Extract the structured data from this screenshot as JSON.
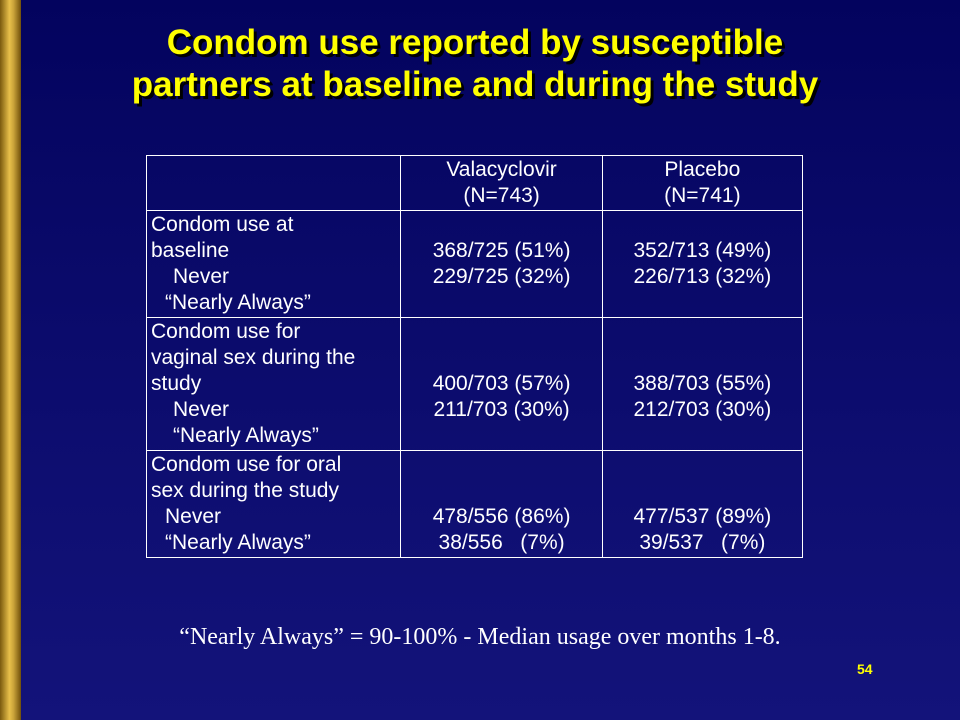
{
  "title": {
    "line1": "Condom use reported by susceptible",
    "line2": "partners at baseline and during the study"
  },
  "table": {
    "header": {
      "col1": [
        "Valacyclovir",
        "(N=743)"
      ],
      "col2": [
        "Placebo",
        "(N=741)"
      ]
    },
    "rows": [
      {
        "label": [
          "Condom use at",
          "baseline",
          "   Never",
          "  “Nearly Always”"
        ],
        "col1": [
          "",
          "368/725 (51%)",
          "229/725 (32%)",
          ""
        ],
        "col2": [
          "",
          "352/713 (49%)",
          "226/713 (32%)",
          ""
        ]
      },
      {
        "label": [
          "Condom use for",
          "vaginal sex during the",
          "study",
          "   Never",
          "   “Nearly Always”"
        ],
        "col1": [
          "",
          "",
          "400/703 (57%)",
          "211/703 (30%)",
          ""
        ],
        "col2": [
          "",
          "",
          "388/703 (55%)",
          "212/703 (30%)",
          ""
        ]
      },
      {
        "label": [
          "Condom use for oral",
          "sex during the study",
          "  Never",
          "  “Nearly Always”"
        ],
        "col1": [
          "",
          "",
          "478/556 (86%)",
          "38/556   (7%)"
        ],
        "col2": [
          "",
          "",
          "477/537 (89%)",
          "39/537   (7%)"
        ]
      }
    ]
  },
  "footnote": "“Nearly Always” = 90-100% - Median usage over months 1-8.",
  "page_number": "54"
}
